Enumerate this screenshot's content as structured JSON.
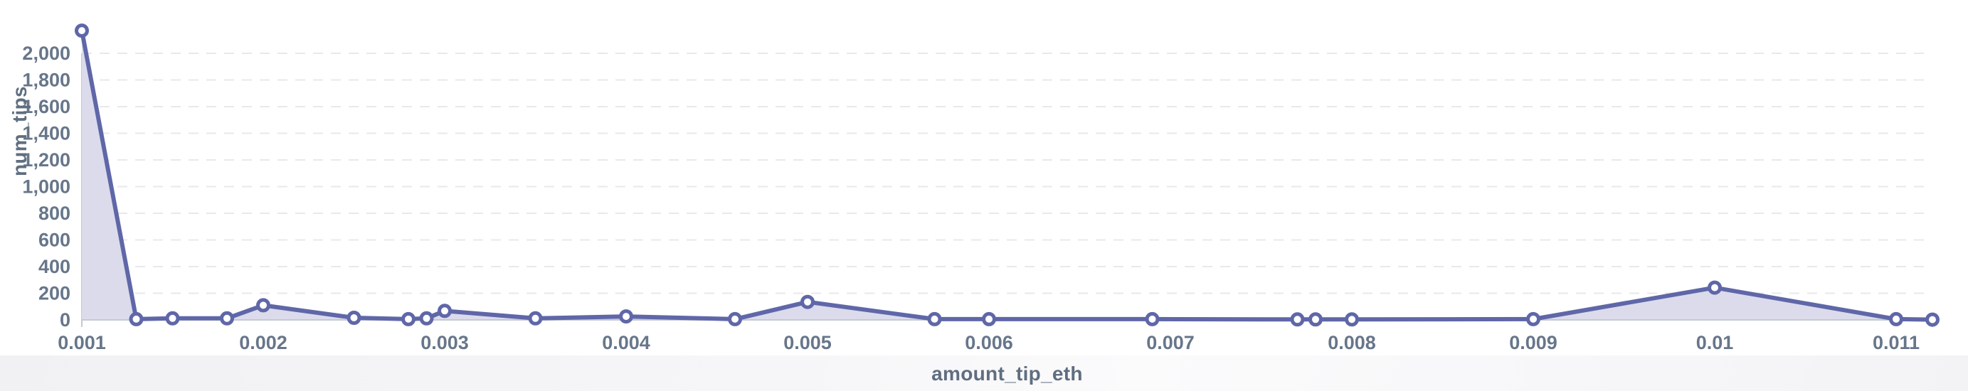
{
  "chart_data": {
    "type": "area",
    "title": "",
    "xlabel": "amount_tip_eth",
    "ylabel": "num_tips",
    "legend_position": "none",
    "grid": "horizontal-dashed",
    "xlim": [
      0.001,
      0.0112
    ],
    "ylim": [
      0,
      2400
    ],
    "x_tick_values": [
      0.001,
      0.002,
      0.003,
      0.004,
      0.005,
      0.006,
      0.007,
      0.008,
      0.009,
      0.01,
      0.011
    ],
    "x_tick_labels": [
      "0.001",
      "0.002",
      "0.003",
      "0.004",
      "0.005",
      "0.006",
      "0.007",
      "0.008",
      "0.009",
      "0.01",
      "0.011"
    ],
    "y_tick_values": [
      0,
      200,
      400,
      600,
      800,
      1000,
      1200,
      1400,
      1600,
      1800,
      2000
    ],
    "y_tick_labels": [
      "0",
      "200",
      "400",
      "600",
      "800",
      "1,000",
      "1,200",
      "1,400",
      "1,600",
      "1,800",
      "2,000"
    ],
    "series": [
      {
        "name": "num_tips",
        "points": [
          [
            0.001,
            2170
          ],
          [
            0.0013,
            6
          ],
          [
            0.0015,
            12
          ],
          [
            0.0018,
            12
          ],
          [
            0.002,
            110
          ],
          [
            0.0025,
            16
          ],
          [
            0.0028,
            6
          ],
          [
            0.0029,
            12
          ],
          [
            0.003,
            68
          ],
          [
            0.0035,
            12
          ],
          [
            0.004,
            26
          ],
          [
            0.0046,
            6
          ],
          [
            0.005,
            135
          ],
          [
            0.0057,
            6
          ],
          [
            0.006,
            6
          ],
          [
            0.0069,
            6
          ],
          [
            0.0077,
            4
          ],
          [
            0.0078,
            4
          ],
          [
            0.008,
            4
          ],
          [
            0.009,
            6
          ],
          [
            0.01,
            242
          ],
          [
            0.011,
            6
          ],
          [
            0.0112,
            2
          ]
        ]
      }
    ],
    "colors": {
      "line": "#5f67a8",
      "area_fill": "#dbdbec",
      "marker_fill": "#ffffff",
      "marker_stroke": "#5f67a8",
      "gridline": "#e9e9ec",
      "axis_line": "#c5c9d3",
      "axis_text": "#67768a",
      "axis_title_text": "#5f6e80"
    }
  }
}
